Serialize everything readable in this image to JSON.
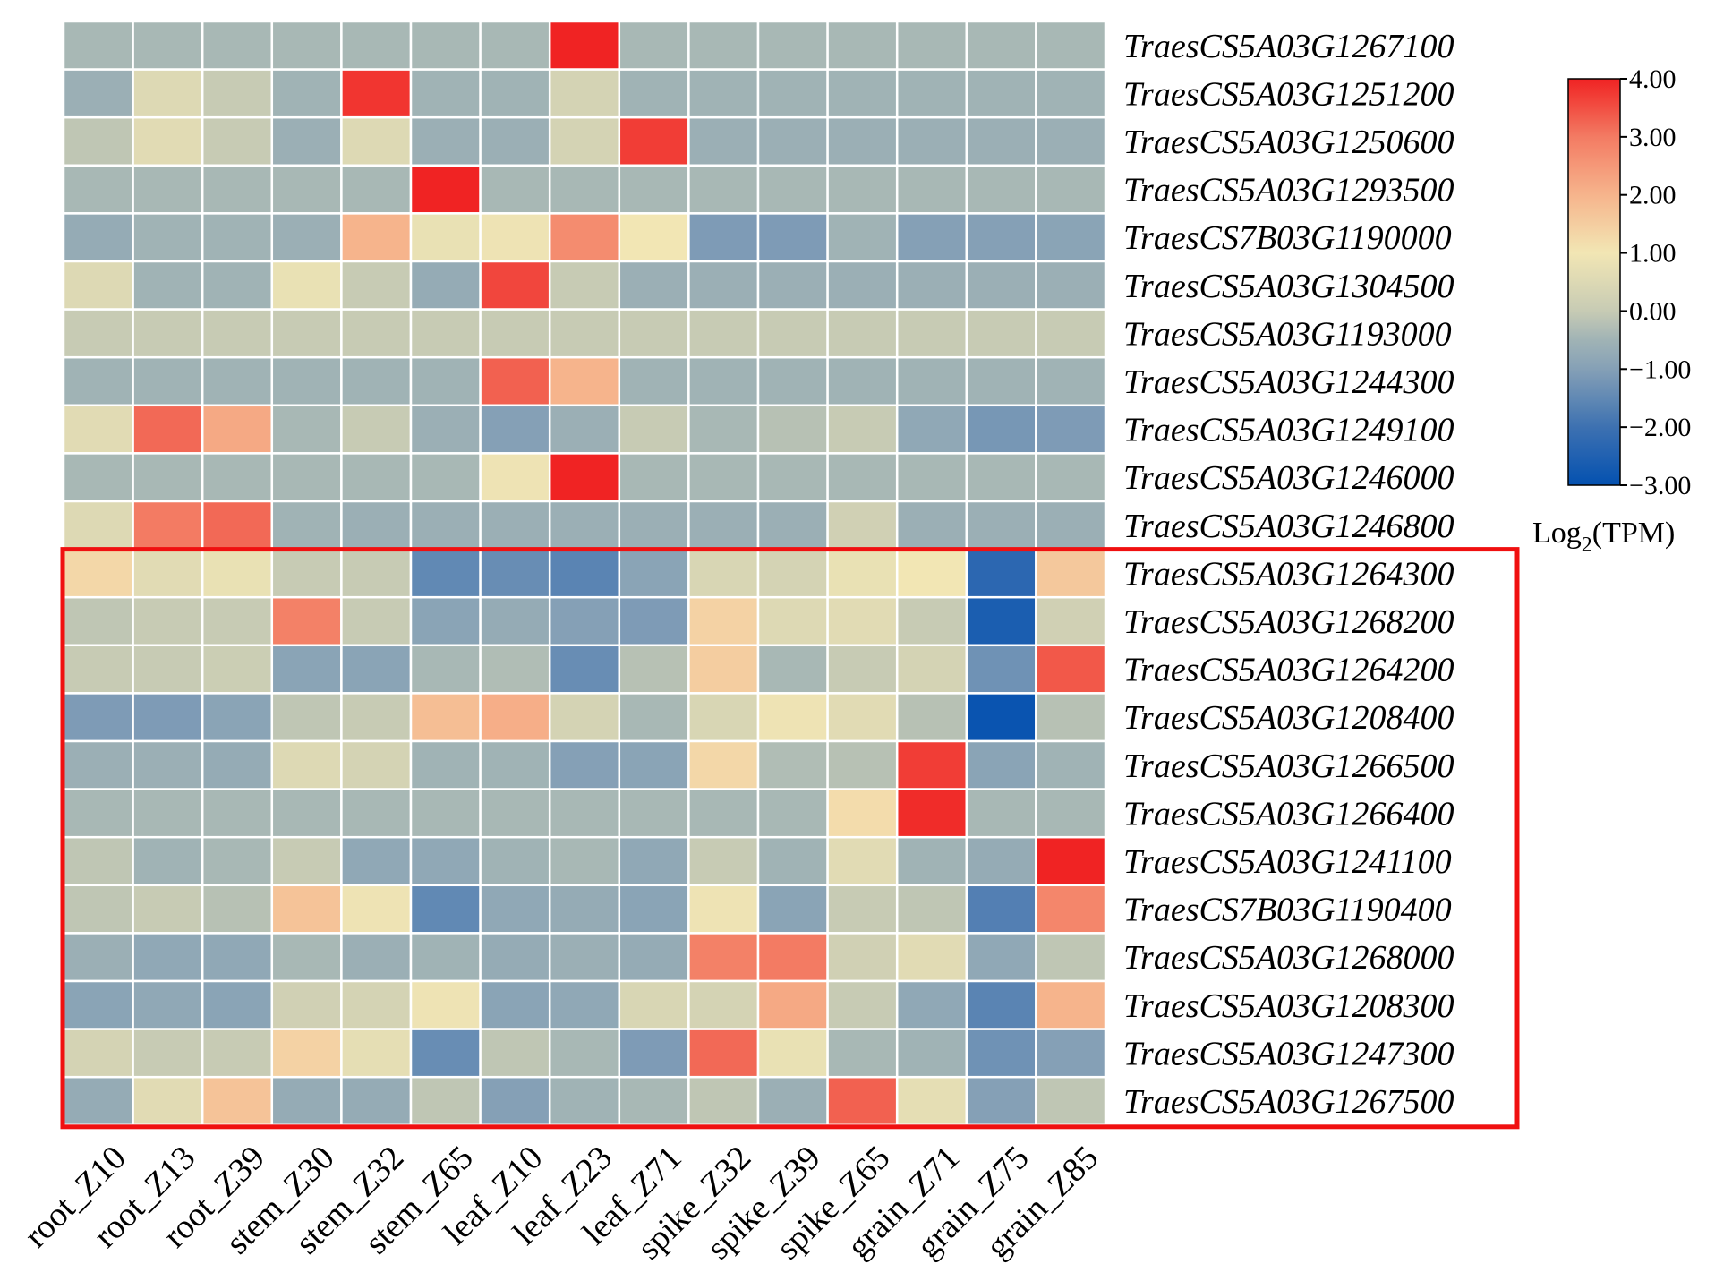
{
  "chart_data": {
    "type": "heatmap",
    "title": "",
    "columns": [
      "root_Z10",
      "root_Z13",
      "root_Z39",
      "stem_Z30",
      "stem_Z32",
      "stem_Z65",
      "leaf_Z10",
      "leaf_Z23",
      "leaf_Z71",
      "spike_Z32",
      "spike_Z39",
      "spike_Z65",
      "grain_Z71",
      "grain_Z75",
      "grain_Z85"
    ],
    "rows": [
      "TraesCS5A03G1267100",
      "TraesCS5A03G1251200",
      "TraesCS5A03G1250600",
      "TraesCS5A03G1293500",
      "TraesCS7B03G1190000",
      "TraesCS5A03G1304500",
      "TraesCS5A03G1193000",
      "TraesCS5A03G1244300",
      "TraesCS5A03G1249100",
      "TraesCS5A03G1246000",
      "TraesCS5A03G1246800",
      "TraesCS5A03G1264300",
      "TraesCS5A03G1268200",
      "TraesCS5A03G1264200",
      "TraesCS5A03G1208400",
      "TraesCS5A03G1266500",
      "TraesCS5A03G1266400",
      "TraesCS5A03G1241100",
      "TraesCS7B03G1190400",
      "TraesCS5A03G1268000",
      "TraesCS5A03G1208300",
      "TraesCS5A03G1247300",
      "TraesCS5A03G1267500"
    ],
    "values": [
      [
        -0.4,
        -0.4,
        -0.4,
        -0.4,
        -0.4,
        -0.4,
        -0.4,
        4.0,
        -0.4,
        -0.4,
        -0.4,
        -0.4,
        -0.4,
        -0.4,
        -0.4
      ],
      [
        -0.6,
        0.5,
        0.0,
        -0.5,
        3.8,
        -0.5,
        -0.5,
        0.3,
        -0.5,
        -0.5,
        -0.5,
        -0.5,
        -0.5,
        -0.5,
        -0.5
      ],
      [
        -0.1,
        0.6,
        0.0,
        -0.6,
        0.5,
        -0.6,
        -0.6,
        0.3,
        3.7,
        -0.6,
        -0.6,
        -0.6,
        -0.6,
        -0.6,
        -0.6
      ],
      [
        -0.4,
        -0.4,
        -0.4,
        -0.4,
        -0.4,
        4.0,
        -0.4,
        -0.4,
        -0.4,
        -0.4,
        -0.4,
        -0.4,
        -0.4,
        -0.4,
        -0.4
      ],
      [
        -0.7,
        -0.5,
        -0.5,
        -0.6,
        2.0,
        0.8,
        0.9,
        2.7,
        1.0,
        -1.1,
        -1.1,
        -0.5,
        -1.0,
        -1.0,
        -0.9
      ],
      [
        0.5,
        -0.5,
        -0.5,
        0.8,
        0.0,
        -0.7,
        3.6,
        0.0,
        -0.6,
        -0.6,
        -0.6,
        -0.6,
        -0.6,
        -0.6,
        -0.6
      ],
      [
        0.0,
        0.0,
        0.0,
        0.0,
        0.0,
        0.0,
        0.0,
        0.0,
        0.0,
        0.0,
        0.0,
        0.0,
        0.0,
        0.0,
        0.0
      ],
      [
        -0.5,
        -0.5,
        -0.5,
        -0.5,
        -0.5,
        -0.5,
        3.3,
        2.0,
        -0.5,
        -0.5,
        -0.5,
        -0.5,
        -0.5,
        -0.5,
        -0.5
      ],
      [
        0.6,
        3.2,
        2.2,
        -0.4,
        0.0,
        -0.6,
        -1.0,
        -0.6,
        0.0,
        -0.4,
        -0.2,
        0.0,
        -0.8,
        -1.2,
        -1.1
      ],
      [
        -0.4,
        -0.4,
        -0.4,
        -0.4,
        -0.4,
        -0.4,
        0.9,
        4.0,
        -0.4,
        -0.4,
        -0.4,
        -0.4,
        -0.4,
        -0.4,
        -0.4
      ],
      [
        0.5,
        3.0,
        3.2,
        -0.5,
        -0.6,
        -0.6,
        -0.6,
        -0.6,
        -0.6,
        -0.6,
        -0.6,
        0.2,
        -0.6,
        -0.6,
        -0.6
      ],
      [
        1.3,
        0.6,
        0.8,
        0.0,
        0.0,
        -1.5,
        -1.4,
        -1.6,
        -0.9,
        0.4,
        0.3,
        0.8,
        1.0,
        -2.3,
        1.6
      ],
      [
        -0.1,
        0.0,
        0.0,
        2.9,
        0.0,
        -0.9,
        -0.7,
        -1.0,
        -1.1,
        1.4,
        0.5,
        0.6,
        0.0,
        -2.6,
        0.2
      ],
      [
        0.0,
        0.0,
        0.1,
        -0.9,
        -0.9,
        -0.4,
        -0.3,
        -1.4,
        -0.2,
        1.5,
        -0.4,
        0.0,
        0.3,
        -1.3,
        3.4
      ],
      [
        -1.1,
        -1.1,
        -0.9,
        -0.1,
        0.0,
        1.8,
        2.1,
        0.3,
        -0.4,
        0.4,
        0.9,
        0.6,
        -0.2,
        -2.9,
        -0.2
      ],
      [
        -0.6,
        -0.6,
        -0.7,
        0.5,
        0.3,
        -0.5,
        -0.5,
        -1.0,
        -0.9,
        1.3,
        -0.3,
        -0.2,
        3.7,
        -0.9,
        -0.5
      ],
      [
        -0.4,
        -0.4,
        -0.4,
        -0.4,
        -0.4,
        -0.4,
        -0.4,
        -0.4,
        -0.4,
        -0.4,
        -0.4,
        1.2,
        3.9,
        -0.4,
        -0.4
      ],
      [
        -0.1,
        -0.5,
        -0.4,
        0.0,
        -0.8,
        -0.8,
        -0.5,
        -0.4,
        -0.8,
        0.0,
        -0.5,
        0.6,
        -0.5,
        -0.7,
        4.0
      ],
      [
        -0.1,
        0.0,
        -0.2,
        1.7,
        0.9,
        -1.5,
        -0.8,
        -0.7,
        -0.9,
        0.9,
        -0.9,
        0.0,
        -0.1,
        -1.7,
        2.8
      ],
      [
        -0.6,
        -0.8,
        -0.8,
        -0.4,
        -0.6,
        -0.5,
        -0.7,
        -0.6,
        -0.7,
        2.9,
        3.0,
        0.2,
        0.6,
        -0.8,
        -0.1
      ],
      [
        -0.9,
        -0.8,
        -0.9,
        0.2,
        0.3,
        0.9,
        -0.9,
        -0.8,
        0.4,
        0.3,
        2.2,
        0.0,
        -0.8,
        -1.6,
        2.0
      ],
      [
        0.3,
        0.0,
        0.0,
        1.4,
        0.7,
        -1.4,
        -0.1,
        -0.4,
        -1.1,
        3.2,
        0.8,
        -0.4,
        -0.5,
        -1.3,
        -1.0
      ],
      [
        -0.7,
        0.6,
        1.7,
        -0.7,
        -0.7,
        -0.1,
        -1.0,
        -0.5,
        -0.4,
        -0.1,
        -0.6,
        3.3,
        0.7,
        -1.0,
        -0.1
      ]
    ],
    "colorbar": {
      "min": -3.0,
      "max": 4.0,
      "ticks": [
        "4.00",
        "3.00",
        "2.00",
        "1.00",
        "0.00",
        "-1.00",
        "-2.00",
        "-3.00"
      ],
      "label": "Log2(TPM)",
      "colormap": [
        [
          -3.0,
          "#0451b0"
        ],
        [
          -2.0,
          "#3d71b1"
        ],
        [
          -1.0,
          "#85a0b6"
        ],
        [
          -0.5,
          "#a0b3b5"
        ],
        [
          0.0,
          "#c7cbb4"
        ],
        [
          1.0,
          "#f2e6b4"
        ],
        [
          2.0,
          "#f6b48c"
        ],
        [
          3.0,
          "#f37b63"
        ],
        [
          4.0,
          "#f02323"
        ]
      ]
    },
    "highlight": {
      "description": "red box around rows 12-23",
      "row_start": 11,
      "row_end": 22,
      "color": "#f01010"
    }
  }
}
